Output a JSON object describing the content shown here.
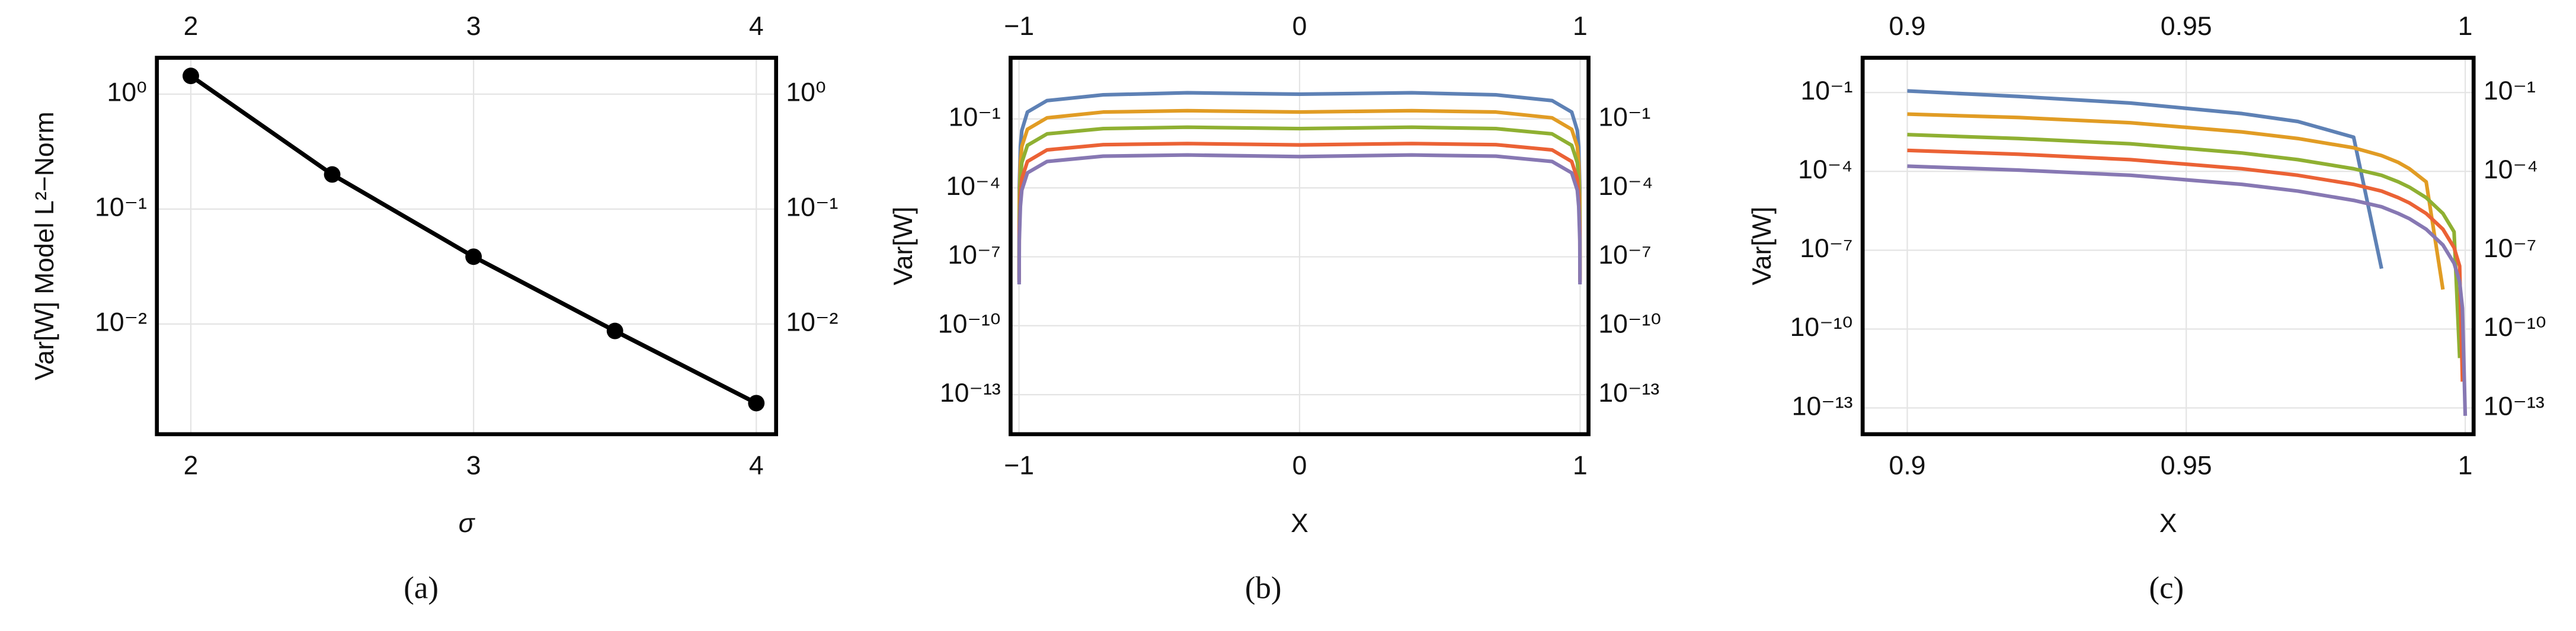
{
  "chart_data": [
    {
      "type": "line",
      "log_y": true,
      "grid": true,
      "markers": true,
      "x_label": "σ",
      "y_label": "Var[W] Model L²−Norm",
      "caption": "(a)",
      "xlim": [
        1.88,
        4.07
      ],
      "xticks": [
        2,
        3,
        4
      ],
      "ylim": [
        0.0011,
        2.07
      ],
      "yticks": [
        {
          "value": 1,
          "label": "10⁰"
        },
        {
          "value": 0.1,
          "label": "10⁻¹"
        },
        {
          "value": 0.01,
          "label": "10⁻²"
        }
      ],
      "x": [
        2,
        2.5,
        3,
        3.5,
        4
      ],
      "series": [
        {
          "color": "#000000",
          "values": [
            1.44,
            0.2,
            0.0385,
            0.0087,
            0.00205
          ]
        }
      ]
    },
    {
      "type": "line",
      "log_y": true,
      "grid": true,
      "markers": false,
      "x_label": "X",
      "y_label": "Var[W]",
      "caption": "(b)",
      "xlim": [
        -1.03,
        1.03
      ],
      "xticks": [
        {
          "value": -1,
          "label": "−1"
        },
        0,
        1
      ],
      "ylim": [
        1.9e-15,
        46
      ],
      "yticks": [
        {
          "value": 0.1,
          "label": "10⁻¹"
        },
        {
          "value": 0.0001,
          "label": "10⁻⁴"
        },
        {
          "value": 1e-07,
          "label": "10⁻⁷"
        },
        {
          "value": 1e-10,
          "label": "10⁻¹⁰"
        },
        {
          "value": 1e-13,
          "label": "10⁻¹³"
        }
      ],
      "x": [
        -0.9995,
        -0.999,
        -0.995,
        -0.99,
        -0.97,
        -0.9,
        -0.7,
        -0.4,
        0,
        0.4,
        0.7,
        0.9,
        0.97,
        0.99,
        0.995,
        0.999,
        0.9995
      ],
      "series": [
        {
          "color": "#5e81b5",
          "values": [
            1.6e-08,
            0.0001,
            0.0063,
            0.0316,
            0.2,
            0.63,
            1.12,
            1.38,
            1.2,
            1.38,
            1.12,
            0.63,
            0.2,
            0.0316,
            0.0063,
            0.0001,
            1.6e-08
          ]
        },
        {
          "color": "#e19c24",
          "values": [
            1.26e-08,
            2.5e-05,
            0.00126,
            0.0063,
            0.0355,
            0.112,
            0.2,
            0.229,
            0.2,
            0.229,
            0.2,
            0.112,
            0.0355,
            0.0063,
            0.00126,
            2.5e-05,
            1.26e-08
          ]
        },
        {
          "color": "#8fb032",
          "values": [
            1e-08,
            6.3e-06,
            0.00025,
            0.00126,
            0.0071,
            0.0224,
            0.038,
            0.0437,
            0.038,
            0.0437,
            0.038,
            0.0224,
            0.0071,
            0.00126,
            0.00025,
            6.3e-06,
            1e-08
          ]
        },
        {
          "color": "#eb6235",
          "values": [
            7.9e-09,
            1.58e-06,
            5e-05,
            0.00025,
            0.00141,
            0.0045,
            0.0076,
            0.0085,
            0.0074,
            0.0085,
            0.0076,
            0.0045,
            0.00141,
            0.00025,
            5e-05,
            1.58e-06,
            7.9e-09
          ]
        },
        {
          "color": "#8778b3",
          "values": [
            6.3e-09,
            5e-07,
            1.58e-05,
            7.9e-05,
            0.00045,
            0.00141,
            0.0024,
            0.0027,
            0.0023,
            0.0027,
            0.0024,
            0.00141,
            0.00045,
            7.9e-05,
            1.58e-05,
            5e-07,
            6.3e-09
          ]
        }
      ]
    },
    {
      "type": "line",
      "log_y": true,
      "grid": true,
      "markers": false,
      "x_label": "X",
      "y_label": "Var[W]",
      "caption": "(c)",
      "xlim": [
        0.892,
        1.0015
      ],
      "xticks": [
        0.9,
        0.95,
        1
      ],
      "ylim": [
        1e-14,
        2.1
      ],
      "yticks": [
        {
          "value": 0.1,
          "label": "10⁻¹"
        },
        {
          "value": 0.0001,
          "label": "10⁻⁴"
        },
        {
          "value": 1e-07,
          "label": "10⁻⁷"
        },
        {
          "value": 1e-10,
          "label": "10⁻¹⁰"
        },
        {
          "value": 1e-13,
          "label": "10⁻¹³"
        }
      ],
      "x": [
        0.9,
        0.92,
        0.94,
        0.96,
        0.97,
        0.98,
        0.985,
        0.988,
        0.99,
        0.993,
        0.996,
        0.998,
        0.999,
        0.9995,
        1
      ],
      "series": [
        {
          "color": "#5e81b5",
          "values": [
            0.115,
            0.0708,
            0.0398,
            0.0158,
            0.0079,
            0.002,
            2e-08,
            null,
            null,
            null,
            null,
            null,
            null,
            null,
            null
          ]
        },
        {
          "color": "#e19c24",
          "values": [
            0.0151,
            0.0112,
            0.00708,
            0.00316,
            0.00178,
            0.00079,
            0.0004,
            0.00022,
            0.000126,
            4e-05,
            3.2e-09,
            null,
            null,
            null,
            null
          ]
        },
        {
          "color": "#8fb032",
          "values": [
            0.0025,
            0.00178,
            0.00112,
            0.0005,
            0.00028,
            0.000126,
            7.1e-05,
            4e-05,
            2.5e-05,
            1e-05,
            2.5e-06,
            5e-07,
            7.9e-12,
            null,
            null
          ]
        },
        {
          "color": "#eb6235",
          "values": [
            0.00063,
            0.00045,
            0.00028,
            0.000126,
            7.1e-05,
            3.2e-05,
            1.78e-05,
            1e-05,
            6.3e-06,
            2.5e-06,
            6.3e-07,
            1.26e-07,
            2.5e-08,
            1e-12,
            null
          ]
        },
        {
          "color": "#8778b3",
          "values": [
            0.000158,
            0.000112,
            7.1e-05,
            3.2e-05,
            1.78e-05,
            7.9e-06,
            4.5e-06,
            2.5e-06,
            1.58e-06,
            6.3e-07,
            1.58e-07,
            3.2e-08,
            6.3e-09,
            6.3e-10,
            5e-14
          ]
        }
      ]
    }
  ]
}
